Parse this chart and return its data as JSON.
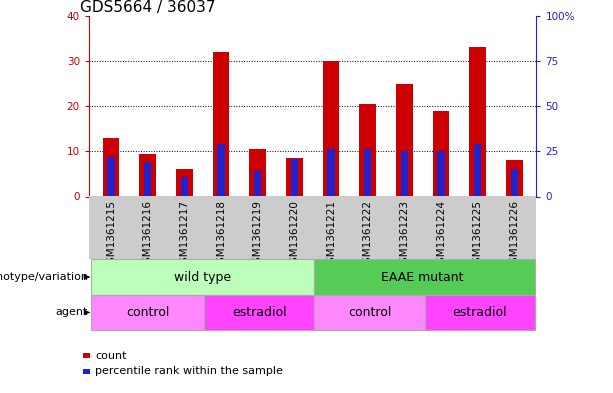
{
  "title": "GDS5664 / 36037",
  "samples": [
    "GSM1361215",
    "GSM1361216",
    "GSM1361217",
    "GSM1361218",
    "GSM1361219",
    "GSM1361220",
    "GSM1361221",
    "GSM1361222",
    "GSM1361223",
    "GSM1361224",
    "GSM1361225",
    "GSM1361226"
  ],
  "counts": [
    13,
    9.5,
    6,
    32,
    10.5,
    8.5,
    30,
    20.5,
    25,
    19,
    33,
    8
  ],
  "percentiles_pct": [
    22,
    19,
    11,
    29,
    14,
    21,
    26,
    26,
    25,
    25,
    29,
    15
  ],
  "red_color": "#cc0000",
  "blue_color": "#2222cc",
  "ylim_left": [
    0,
    40
  ],
  "ylim_right": [
    0,
    100
  ],
  "yticks_left": [
    0,
    10,
    20,
    30,
    40
  ],
  "yticks_right": [
    0,
    25,
    50,
    75,
    100
  ],
  "ytick_labels_right": [
    "0",
    "25",
    "50",
    "75",
    "100%"
  ],
  "left_tick_color": "#cc0000",
  "right_tick_color": "#2222cc",
  "bar_width": 0.45,
  "blue_bar_width": 0.2,
  "wt_color": "#bbffbb",
  "eaae_color": "#55cc55",
  "ctrl_color": "#ff88ff",
  "estr_color": "#ff44ff",
  "agent_bg": "#ff88ff",
  "label_genotype": "genotype/variation",
  "label_agent": "agent",
  "legend_count": "count",
  "legend_percentile": "percentile rank within the sample",
  "xtick_bg": "#cccccc",
  "title_fontsize": 11,
  "tick_fontsize": 7.5
}
